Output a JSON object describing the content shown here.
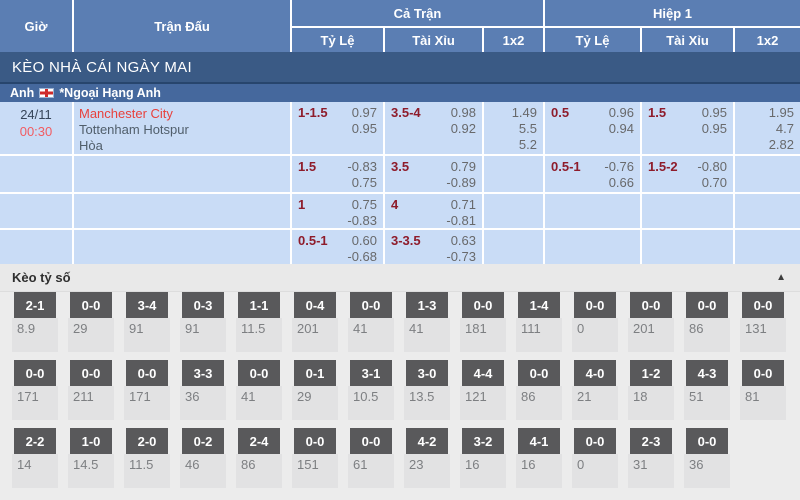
{
  "colors": {
    "header_blue": "#5b7eb3",
    "dark_bar_blue": "#3a5a85",
    "league_bar_blue": "#45689d",
    "row_light_blue": "#c9dcf6",
    "handicap_maroon": "#8e1c2b",
    "time_red": "#f25b61",
    "home_team_red": "#e8413c",
    "score_badge_gray": "#59595b"
  },
  "header": {
    "time_col": "Giờ",
    "match_col": "Trận Đấu",
    "full_time": "Cả Trận",
    "first_half": "Hiệp 1",
    "sub": {
      "hdp": "Tỷ Lệ",
      "ou": "Tài Xỉu",
      "x12": "1x2"
    }
  },
  "sections": {
    "tomorrow_title": "KÈO NHÀ CÁI NGÀY MAI"
  },
  "league": {
    "country": "Anh",
    "flag": "england-flag",
    "name": "*Ngoại Hạng Anh"
  },
  "match": {
    "date": "24/11",
    "time": "00:30",
    "home": "Manchester City",
    "away": "Tottenham Hotspur",
    "draw_label": "Hòa"
  },
  "odds_rows": [
    {
      "ft_hdp_line": "1-1.5",
      "ft_hdp_v1": "0.97",
      "ft_hdp_v2": "0.95",
      "ft_ou_line": "3.5-4",
      "ft_ou_v1": "0.98",
      "ft_ou_v2": "0.92",
      "ft_1x2": [
        "1.49",
        "5.5",
        "5.2"
      ],
      "h1_hdp_line": "0.5",
      "h1_hdp_v1": "0.96",
      "h1_hdp_v2": "0.94",
      "h1_ou_line": "1.5",
      "h1_ou_v1": "0.95",
      "h1_ou_v2": "0.95",
      "h1_1x2": [
        "1.95",
        "4.7",
        "2.82"
      ]
    },
    {
      "ft_hdp_line": "1.5",
      "ft_hdp_v1": "-0.83",
      "ft_hdp_v2": "0.75",
      "ft_ou_line": "3.5",
      "ft_ou_v1": "0.79",
      "ft_ou_v2": "-0.89",
      "h1_hdp_line": "0.5-1",
      "h1_hdp_v1": "-0.76",
      "h1_hdp_v2": "0.66",
      "h1_ou_line": "1.5-2",
      "h1_ou_v1": "-0.80",
      "h1_ou_v2": "0.70"
    },
    {
      "ft_hdp_line": "1",
      "ft_hdp_v1": "0.75",
      "ft_hdp_v2": "-0.83",
      "ft_ou_line": "4",
      "ft_ou_v1": "0.71",
      "ft_ou_v2": "-0.81"
    },
    {
      "ft_hdp_line": "0.5-1",
      "ft_hdp_v1": "0.60",
      "ft_hdp_v2": "-0.68",
      "ft_ou_line": "3-3.5",
      "ft_ou_v1": "0.63",
      "ft_ou_v2": "-0.73"
    }
  ],
  "score_section": {
    "title": "Kèo tỷ số",
    "collapse_icon": "triangle-up-icon",
    "rows": [
      [
        {
          "score": "2-1",
          "odds": "8.9"
        },
        {
          "score": "0-0",
          "odds": "29"
        },
        {
          "score": "3-4",
          "odds": "91"
        },
        {
          "score": "0-3",
          "odds": "91"
        },
        {
          "score": "1-1",
          "odds": "11.5"
        },
        {
          "score": "0-4",
          "odds": "201"
        },
        {
          "score": "0-0",
          "odds": "41"
        },
        {
          "score": "1-3",
          "odds": "41"
        },
        {
          "score": "0-0",
          "odds": "181"
        },
        {
          "score": "1-4",
          "odds": "111"
        },
        {
          "score": "0-0",
          "odds": "0"
        },
        {
          "score": "0-0",
          "odds": "201"
        },
        {
          "score": "0-0",
          "odds": "86"
        },
        {
          "score": "0-0",
          "odds": "131"
        }
      ],
      [
        {
          "score": "0-0",
          "odds": "171"
        },
        {
          "score": "0-0",
          "odds": "211"
        },
        {
          "score": "0-0",
          "odds": "171"
        },
        {
          "score": "3-3",
          "odds": "36"
        },
        {
          "score": "0-0",
          "odds": "41"
        },
        {
          "score": "0-1",
          "odds": "29"
        },
        {
          "score": "3-1",
          "odds": "10.5"
        },
        {
          "score": "3-0",
          "odds": "13.5"
        },
        {
          "score": "4-4",
          "odds": "121"
        },
        {
          "score": "0-0",
          "odds": "86"
        },
        {
          "score": "4-0",
          "odds": "21"
        },
        {
          "score": "1-2",
          "odds": "18"
        },
        {
          "score": "4-3",
          "odds": "51"
        },
        {
          "score": "0-0",
          "odds": "81"
        }
      ],
      [
        {
          "score": "2-2",
          "odds": "14"
        },
        {
          "score": "1-0",
          "odds": "14.5"
        },
        {
          "score": "2-0",
          "odds": "11.5"
        },
        {
          "score": "0-2",
          "odds": "46"
        },
        {
          "score": "2-4",
          "odds": "86"
        },
        {
          "score": "0-0",
          "odds": "151"
        },
        {
          "score": "0-0",
          "odds": "61"
        },
        {
          "score": "4-2",
          "odds": "23"
        },
        {
          "score": "3-2",
          "odds": "16"
        },
        {
          "score": "4-1",
          "odds": "16"
        },
        {
          "score": "0-0",
          "odds": "0"
        },
        {
          "score": "2-3",
          "odds": "31"
        },
        {
          "score": "0-0",
          "odds": "36"
        }
      ]
    ]
  }
}
